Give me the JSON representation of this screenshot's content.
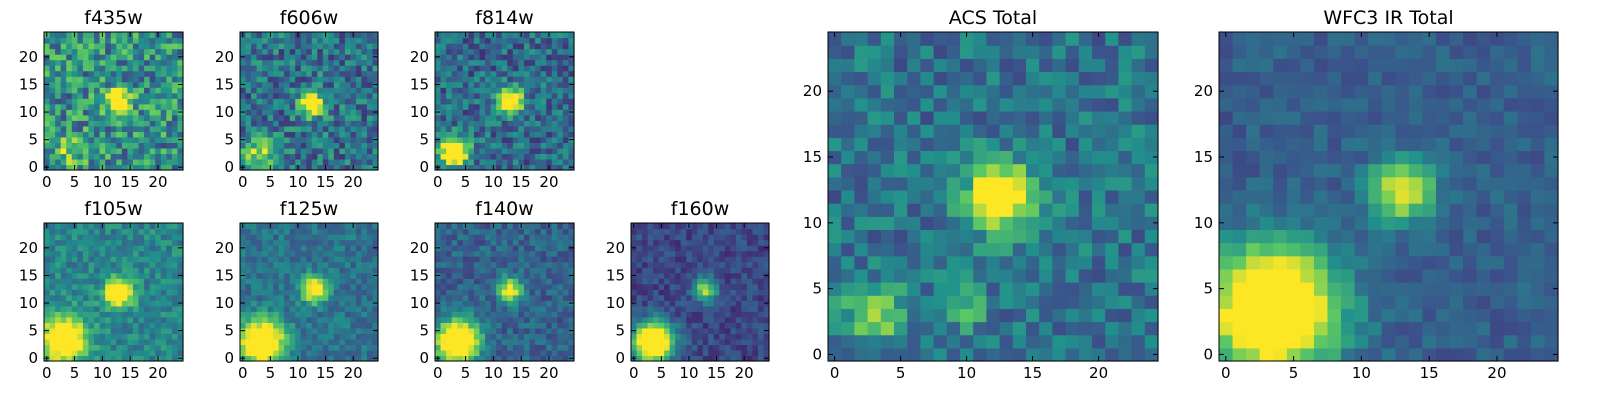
{
  "figure": {
    "colormap": "viridis",
    "colormap_stops": [
      "#440154",
      "#3b528b",
      "#21918c",
      "#5ec962",
      "#fde725"
    ],
    "grid": false
  },
  "chart_data": [
    {
      "type": "heatmap",
      "title": "f435w",
      "xlim": [
        0,
        24
      ],
      "ylim": [
        0,
        24
      ],
      "x_ticks": [
        0,
        5,
        10,
        15,
        20
      ],
      "y_ticks": [
        0,
        5,
        10,
        15,
        20
      ],
      "sources": [
        {
          "x": 13,
          "y": 12,
          "peak": 0.55,
          "sigma": 1.5
        },
        {
          "x": 4,
          "y": 3,
          "peak": 0.2,
          "sigma": 2.0
        }
      ],
      "background": 0.5,
      "noise": 0.28,
      "seed": 11
    },
    {
      "type": "heatmap",
      "title": "f606w",
      "xlim": [
        0,
        24
      ],
      "ylim": [
        0,
        24
      ],
      "x_ticks": [
        0,
        5,
        10,
        15,
        20
      ],
      "y_ticks": [
        0,
        5,
        10,
        15,
        20
      ],
      "sources": [
        {
          "x": 12.5,
          "y": 11.5,
          "peak": 0.6,
          "sigma": 1.5
        },
        {
          "x": 3,
          "y": 2.5,
          "peak": 0.3,
          "sigma": 2.2
        }
      ],
      "background": 0.38,
      "noise": 0.22,
      "seed": 23
    },
    {
      "type": "heatmap",
      "title": "f814w",
      "xlim": [
        0,
        24
      ],
      "ylim": [
        0,
        24
      ],
      "x_ticks": [
        0,
        5,
        10,
        15,
        20
      ],
      "y_ticks": [
        0,
        5,
        10,
        15,
        20
      ],
      "sources": [
        {
          "x": 13,
          "y": 12,
          "peak": 0.6,
          "sigma": 1.6
        },
        {
          "x": 3,
          "y": 3,
          "peak": 0.65,
          "sigma": 1.8
        }
      ],
      "background": 0.35,
      "noise": 0.2,
      "seed": 37
    },
    {
      "type": "heatmap",
      "title": "f105w",
      "xlim": [
        0,
        24
      ],
      "ylim": [
        0,
        24
      ],
      "x_ticks": [
        0,
        5,
        10,
        15,
        20
      ],
      "y_ticks": [
        0,
        5,
        10,
        15,
        20
      ],
      "sources": [
        {
          "x": 13,
          "y": 12,
          "peak": 0.55,
          "sigma": 1.8
        },
        {
          "x": 3,
          "y": 3.5,
          "peak": 0.6,
          "sigma": 2.8
        }
      ],
      "background": 0.45,
      "noise": 0.13,
      "seed": 41
    },
    {
      "type": "heatmap",
      "title": "f125w",
      "xlim": [
        0,
        24
      ],
      "ylim": [
        0,
        24
      ],
      "x_ticks": [
        0,
        5,
        10,
        15,
        20
      ],
      "y_ticks": [
        0,
        5,
        10,
        15,
        20
      ],
      "sources": [
        {
          "x": 13,
          "y": 12.5,
          "peak": 0.5,
          "sigma": 1.6
        },
        {
          "x": 3.5,
          "y": 3,
          "peak": 0.65,
          "sigma": 2.8
        }
      ],
      "background": 0.38,
      "noise": 0.12,
      "seed": 53
    },
    {
      "type": "heatmap",
      "title": "f140w",
      "xlim": [
        0,
        24
      ],
      "ylim": [
        0,
        24
      ],
      "x_ticks": [
        0,
        5,
        10,
        15,
        20
      ],
      "y_ticks": [
        0,
        5,
        10,
        15,
        20
      ],
      "sources": [
        {
          "x": 13,
          "y": 12.5,
          "peak": 0.45,
          "sigma": 1.5
        },
        {
          "x": 3.5,
          "y": 3,
          "peak": 0.75,
          "sigma": 2.6
        }
      ],
      "background": 0.32,
      "noise": 0.12,
      "seed": 67
    },
    {
      "type": "heatmap",
      "title": "f160w",
      "xlim": [
        0,
        24
      ],
      "ylim": [
        0,
        24
      ],
      "x_ticks": [
        0,
        5,
        10,
        15,
        20
      ],
      "y_ticks": [
        0,
        5,
        10,
        15,
        20
      ],
      "sources": [
        {
          "x": 13,
          "y": 12.5,
          "peak": 0.4,
          "sigma": 1.5
        },
        {
          "x": 3.5,
          "y": 3,
          "peak": 0.8,
          "sigma": 2.5
        }
      ],
      "background": 0.22,
      "noise": 0.1,
      "seed": 79
    },
    {
      "type": "heatmap",
      "title": "ACS Total",
      "xlim": [
        0,
        24
      ],
      "ylim": [
        0,
        24
      ],
      "x_ticks": [
        0,
        5,
        10,
        15,
        20
      ],
      "y_ticks": [
        0,
        5,
        10,
        15,
        20
      ],
      "sources": [
        {
          "x": 12.5,
          "y": 12,
          "peak": 0.6,
          "sigma": 1.7
        },
        {
          "x": 3,
          "y": 3,
          "peak": 0.28,
          "sigma": 1.6
        },
        {
          "x": 10,
          "y": 3.5,
          "peak": 0.15,
          "sigma": 1.2
        }
      ],
      "background": 0.38,
      "noise": 0.16,
      "seed": 97
    },
    {
      "type": "heatmap",
      "title": "WFC3 IR Total",
      "xlim": [
        0,
        24
      ],
      "ylim": [
        0,
        24
      ],
      "x_ticks": [
        0,
        5,
        10,
        15,
        20
      ],
      "y_ticks": [
        0,
        5,
        10,
        15,
        20
      ],
      "sources": [
        {
          "x": 13,
          "y": 12.5,
          "peak": 0.45,
          "sigma": 1.6
        },
        {
          "x": 3.5,
          "y": 3.5,
          "peak": 0.75,
          "sigma": 3.2
        }
      ],
      "background": 0.3,
      "noise": 0.08,
      "seed": 113
    }
  ]
}
